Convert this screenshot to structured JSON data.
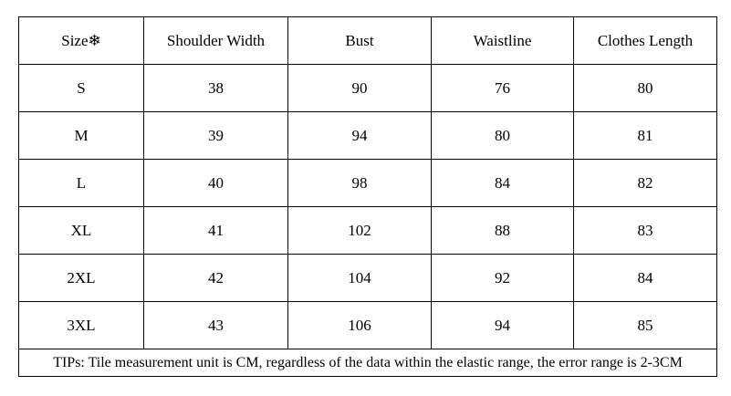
{
  "table": {
    "headers": [
      "Size❄",
      "Shoulder Width",
      "Bust",
      "Waistline",
      "Clothes Length"
    ],
    "rows": [
      [
        "S",
        "38",
        "90",
        "76",
        "80"
      ],
      [
        "M",
        "39",
        "94",
        "80",
        "81"
      ],
      [
        "L",
        "40",
        "98",
        "84",
        "82"
      ],
      [
        "XL",
        "41",
        "102",
        "88",
        "83"
      ],
      [
        "2XL",
        "42",
        "104",
        "92",
        "84"
      ],
      [
        "3XL",
        "43",
        "106",
        "94",
        "85"
      ]
    ],
    "tips": "TIPs: Tile measurement unit is CM, regardless of the data within the elastic range, the error range is 2-3CM"
  }
}
